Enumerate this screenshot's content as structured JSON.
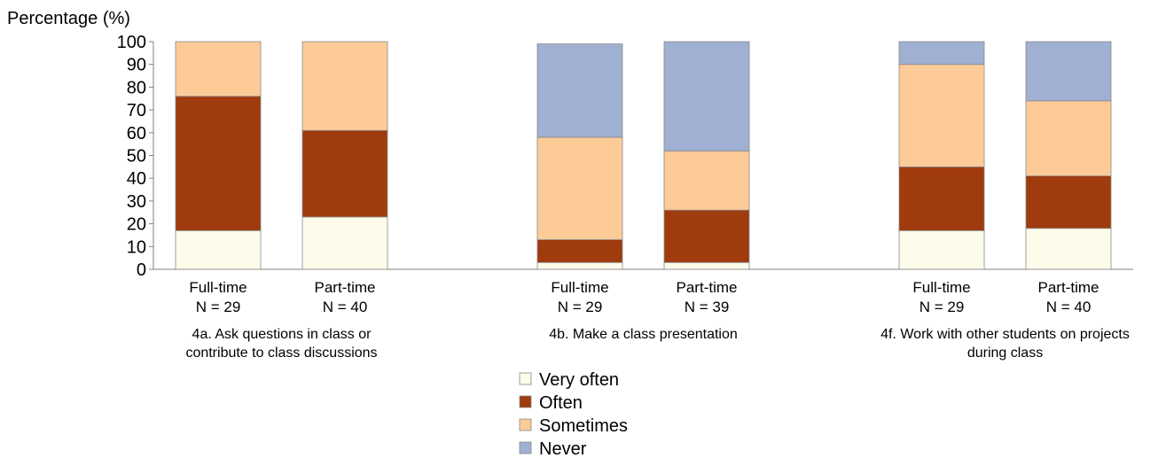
{
  "chart_data": {
    "type": "bar",
    "stacked": true,
    "ylabel": "Percentage (%)",
    "ylim": [
      0,
      100
    ],
    "yticks": [
      "0",
      "10",
      "20",
      "30",
      "40",
      "50",
      "60",
      "70",
      "80",
      "90",
      "100"
    ],
    "grid": false,
    "legend_position": "bottom-center",
    "legend": [
      "Very often",
      "Often",
      "Sometimes",
      "Never"
    ],
    "colors": {
      "Very often": "#fdfbea",
      "Often": "#9f3b0d",
      "Sometimes": "#fdcb98",
      "Never": "#a0b0d2"
    },
    "groups": [
      {
        "label_lines": [
          "4a. Ask questions in class or",
          "contribute to class discussions"
        ],
        "bars": [
          {
            "name": "Full-time",
            "n": "N = 29",
            "values": {
              "Very often": 17,
              "Often": 59,
              "Sometimes": 24,
              "Never": 0
            }
          },
          {
            "name": "Part-time",
            "n": "N = 40",
            "values": {
              "Very often": 23,
              "Often": 38,
              "Sometimes": 39,
              "Never": 0
            }
          }
        ]
      },
      {
        "label_lines": [
          "4b. Make a class presentation"
        ],
        "bars": [
          {
            "name": "Full-time",
            "n": "N = 29",
            "values": {
              "Very often": 3,
              "Often": 10,
              "Sometimes": 45,
              "Never": 41
            }
          },
          {
            "name": "Part-time",
            "n": "N = 39",
            "values": {
              "Very often": 3,
              "Often": 23,
              "Sometimes": 26,
              "Never": 48
            }
          }
        ]
      },
      {
        "label_lines": [
          "4f. Work with other students on projects",
          "during class"
        ],
        "bars": [
          {
            "name": "Full-time",
            "n": "N = 29",
            "values": {
              "Very often": 17,
              "Often": 28,
              "Sometimes": 45,
              "Never": 10
            }
          },
          {
            "name": "Part-time",
            "n": "N = 40",
            "values": {
              "Very often": 18,
              "Often": 23,
              "Sometimes": 33,
              "Never": 26
            }
          }
        ]
      }
    ]
  }
}
